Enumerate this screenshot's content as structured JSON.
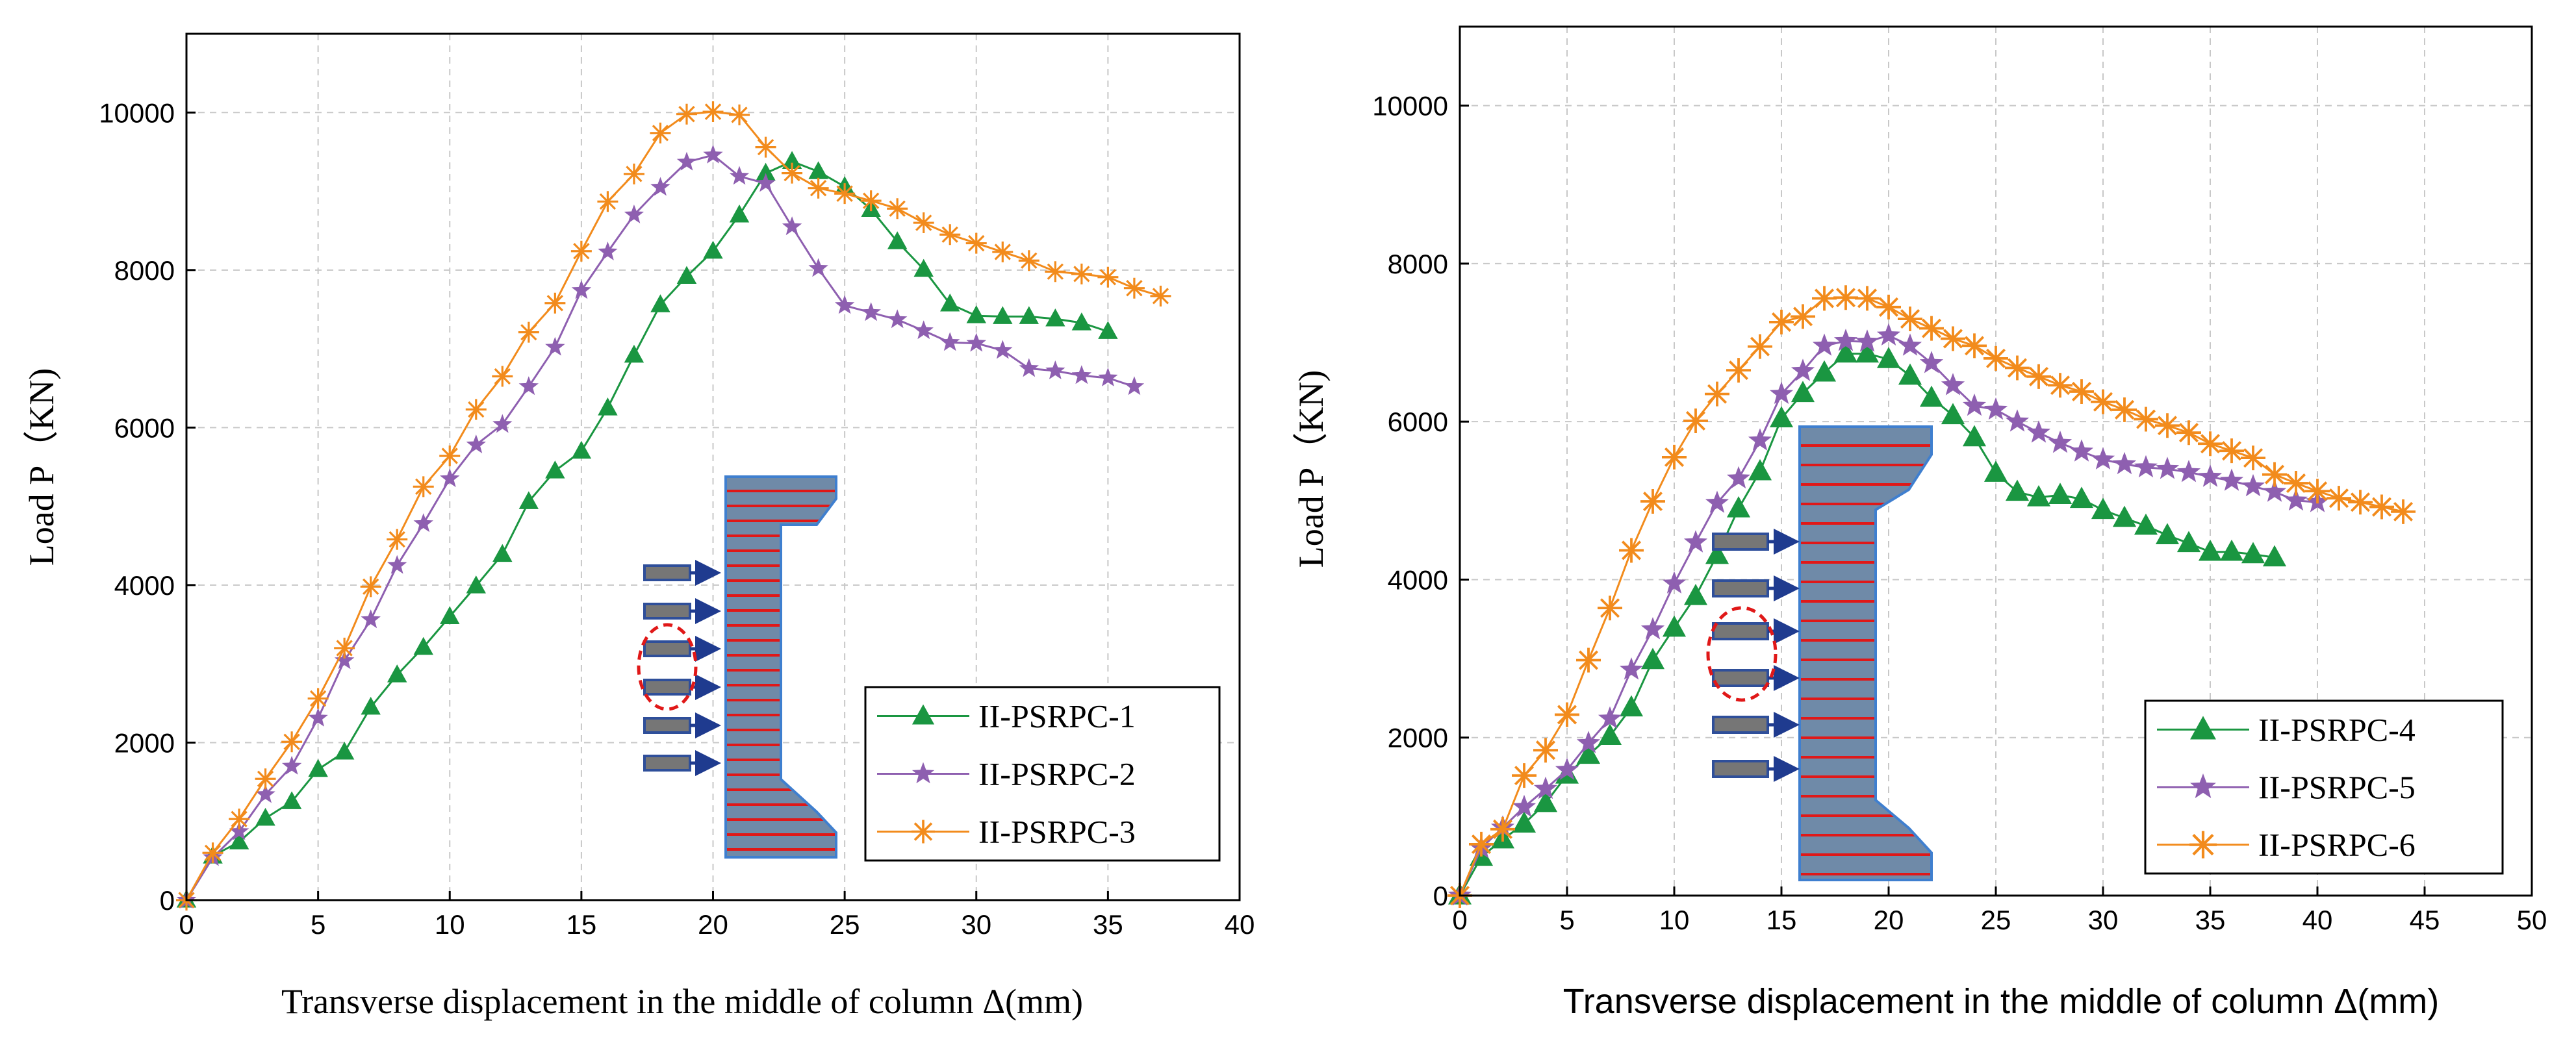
{
  "chart_data": [
    {
      "type": "line",
      "xlabel": "Transverse displacement in the middle of column Δ(mm)",
      "ylabel": "Load P（KN)",
      "xlim": [
        0,
        40
      ],
      "ylim": [
        0,
        11000
      ],
      "xticks": [
        0,
        5,
        10,
        15,
        20,
        25,
        30,
        35,
        40
      ],
      "yticks": [
        0,
        2000,
        4000,
        6000,
        8000,
        10000
      ],
      "grid": true,
      "legend_position": "bottom-right",
      "series": [
        {
          "name": "II-PSRPC-1",
          "color": "#1a9641",
          "marker": "triangle",
          "x": [
            0,
            1,
            2,
            3,
            4,
            5,
            6,
            7,
            8,
            9,
            10,
            11,
            12,
            13,
            14,
            15,
            16,
            17,
            18,
            19,
            20,
            21,
            22,
            23,
            24,
            25,
            26,
            27,
            28,
            29,
            30,
            31,
            32,
            33,
            34,
            35
          ],
          "y": [
            0,
            560,
            740,
            1040,
            1250,
            1660,
            1880,
            2450,
            2860,
            3210,
            3600,
            3990,
            4390,
            5060,
            5450,
            5700,
            6250,
            6920,
            7560,
            7920,
            8240,
            8700,
            9230,
            9380,
            9250,
            9060,
            8770,
            8360,
            8010,
            7570,
            7420,
            7410,
            7410,
            7380,
            7330,
            7220
          ]
        },
        {
          "name": "II-PSRPC-2",
          "color": "#8e5fb0",
          "marker": "star",
          "x": [
            0,
            1,
            2,
            3,
            4,
            5,
            6,
            7,
            8,
            9,
            10,
            11,
            12,
            13,
            14,
            15,
            16,
            17,
            18,
            19,
            20,
            21,
            22,
            23,
            24,
            25,
            26,
            27,
            28,
            29,
            30,
            31,
            32,
            33,
            34,
            35,
            36
          ],
          "y": [
            0,
            540,
            870,
            1340,
            1700,
            2310,
            3040,
            3560,
            4250,
            4780,
            5350,
            5780,
            6040,
            6520,
            7020,
            7740,
            8230,
            8700,
            9050,
            9370,
            9460,
            9190,
            9100,
            8550,
            8020,
            7550,
            7460,
            7370,
            7230,
            7080,
            7070,
            6980,
            6750,
            6720,
            6660,
            6630,
            6520
          ]
        },
        {
          "name": "II-PSRPC-3",
          "color": "#f28b1c",
          "marker": "asterisk",
          "x": [
            0,
            1,
            2,
            3,
            4,
            5,
            6,
            7,
            8,
            9,
            10,
            11,
            12,
            13,
            14,
            15,
            16,
            17,
            18,
            19,
            20,
            21,
            22,
            23,
            24,
            25,
            26,
            27,
            28,
            29,
            30,
            31,
            32,
            33,
            34,
            35,
            36,
            37
          ],
          "y": [
            0,
            600,
            1030,
            1540,
            2010,
            2560,
            3200,
            3980,
            4580,
            5250,
            5640,
            6230,
            6650,
            7210,
            7580,
            8240,
            8870,
            9220,
            9740,
            9980,
            10010,
            9970,
            9560,
            9230,
            9040,
            8970,
            8880,
            8780,
            8600,
            8450,
            8340,
            8230,
            8120,
            7980,
            7950,
            7910,
            7770,
            7670
          ]
        }
      ]
    },
    {
      "type": "line",
      "xlabel": "Transverse displacement in the middle of column Δ(mm)",
      "ylabel": "Load P（KN)",
      "xlim": [
        0,
        50
      ],
      "ylim": [
        0,
        11000
      ],
      "xticks": [
        0,
        5,
        10,
        15,
        20,
        25,
        30,
        35,
        40,
        45,
        50
      ],
      "yticks": [
        0,
        2000,
        4000,
        6000,
        8000,
        10000
      ],
      "grid": true,
      "legend_position": "bottom-right",
      "series": [
        {
          "name": "II-PSRPC-4",
          "color": "#1a9641",
          "marker": "triangle",
          "x": [
            0,
            1,
            2,
            3,
            4,
            5,
            6,
            7,
            8,
            9,
            10,
            11,
            12,
            13,
            14,
            15,
            16,
            17,
            18,
            19,
            20,
            21,
            22,
            23,
            24,
            25,
            26,
            27,
            28,
            29,
            30,
            31,
            32,
            33,
            34,
            35,
            36,
            37,
            38
          ],
          "y": [
            0,
            490,
            710,
            910,
            1170,
            1530,
            1780,
            2020,
            2380,
            2980,
            3390,
            3790,
            4310,
            4900,
            5370,
            6040,
            6360,
            6620,
            6860,
            6860,
            6790,
            6580,
            6300,
            6080,
            5800,
            5350,
            5110,
            5040,
            5070,
            5020,
            4880,
            4780,
            4680,
            4560,
            4460,
            4350,
            4350,
            4320,
            4280
          ]
        },
        {
          "name": "II-PSRPC-5",
          "color": "#8e5fb0",
          "marker": "star",
          "x": [
            0,
            1,
            2,
            3,
            4,
            5,
            6,
            7,
            8,
            9,
            10,
            11,
            12,
            13,
            14,
            15,
            16,
            17,
            18,
            19,
            20,
            21,
            22,
            23,
            24,
            25,
            26,
            27,
            28,
            29,
            30,
            31,
            32,
            33,
            34,
            35,
            36,
            37,
            38,
            39,
            40
          ],
          "y": [
            0,
            600,
            860,
            1120,
            1350,
            1590,
            1930,
            2240,
            2860,
            3370,
            3950,
            4470,
            4970,
            5280,
            5760,
            6350,
            6640,
            6960,
            7020,
            7010,
            7090,
            6960,
            6740,
            6460,
            6200,
            6150,
            6000,
            5860,
            5730,
            5620,
            5520,
            5460,
            5420,
            5400,
            5360,
            5300,
            5250,
            5180,
            5110,
            5000,
            4980
          ]
        },
        {
          "name": "II-PSRPC-6",
          "color": "#f28b1c",
          "marker": "asterisk",
          "x": [
            0,
            1,
            2,
            3,
            4,
            5,
            6,
            7,
            8,
            9,
            10,
            11,
            12,
            13,
            14,
            15,
            16,
            17,
            18,
            19,
            20,
            21,
            22,
            23,
            24,
            25,
            26,
            27,
            28,
            29,
            30,
            31,
            32,
            33,
            34,
            35,
            36,
            37,
            38,
            39,
            40,
            41,
            42,
            43,
            44
          ],
          "y": [
            0,
            650,
            840,
            1520,
            1840,
            2290,
            2980,
            3640,
            4370,
            4990,
            5550,
            6010,
            6350,
            6650,
            6950,
            7260,
            7330,
            7560,
            7570,
            7560,
            7450,
            7300,
            7180,
            7050,
            6960,
            6800,
            6680,
            6570,
            6460,
            6380,
            6250,
            6150,
            6030,
            5950,
            5860,
            5720,
            5630,
            5540,
            5330,
            5220,
            5120,
            5030,
            4980,
            4920,
            4860
          ]
        }
      ]
    }
  ]
}
